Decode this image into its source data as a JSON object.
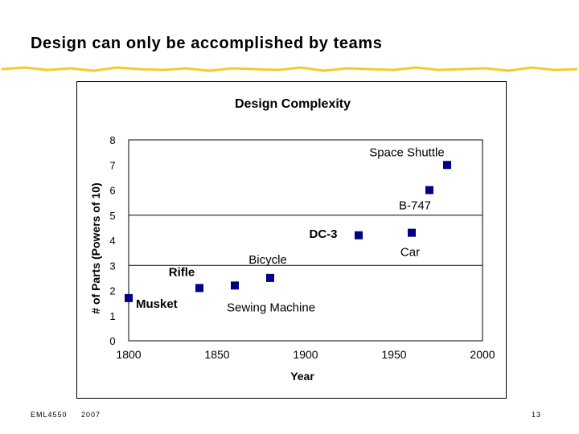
{
  "slide": {
    "title": "Design can only be accomplished by teams",
    "footer_course": "EML4550",
    "footer_year": "2007",
    "page_number": "13",
    "accent_color": "#f4cc2a"
  },
  "chart_data": {
    "type": "scatter",
    "title": "Design Complexity",
    "xlabel": "Year",
    "ylabel": "# of Parts (Powers of 10)",
    "xlim": [
      1800,
      2000
    ],
    "ylim": [
      0,
      8
    ],
    "x_ticks": [
      1800,
      1850,
      1900,
      1950,
      2000
    ],
    "y_ticks": [
      0,
      1,
      2,
      3,
      4,
      5,
      6,
      7,
      8
    ],
    "grid": "horizontal major lines",
    "legend": "none",
    "marker_color": "#000080",
    "marker_shape": "square",
    "points": [
      {
        "label": "Musket",
        "x": 1800,
        "y": 1.7
      },
      {
        "label": "Rifle",
        "x": 1840,
        "y": 2.1
      },
      {
        "label": "Sewing Machine",
        "x": 1860,
        "y": 2.2
      },
      {
        "label": "Bicycle",
        "x": 1880,
        "y": 2.5
      },
      {
        "label": "DC-3",
        "x": 1930,
        "y": 4.2
      },
      {
        "label": "Car",
        "x": 1960,
        "y": 4.3
      },
      {
        "label": "B-747",
        "x": 1970,
        "y": 6.0
      },
      {
        "label": "Space Shuttle",
        "x": 1980,
        "y": 7.0
      }
    ]
  }
}
